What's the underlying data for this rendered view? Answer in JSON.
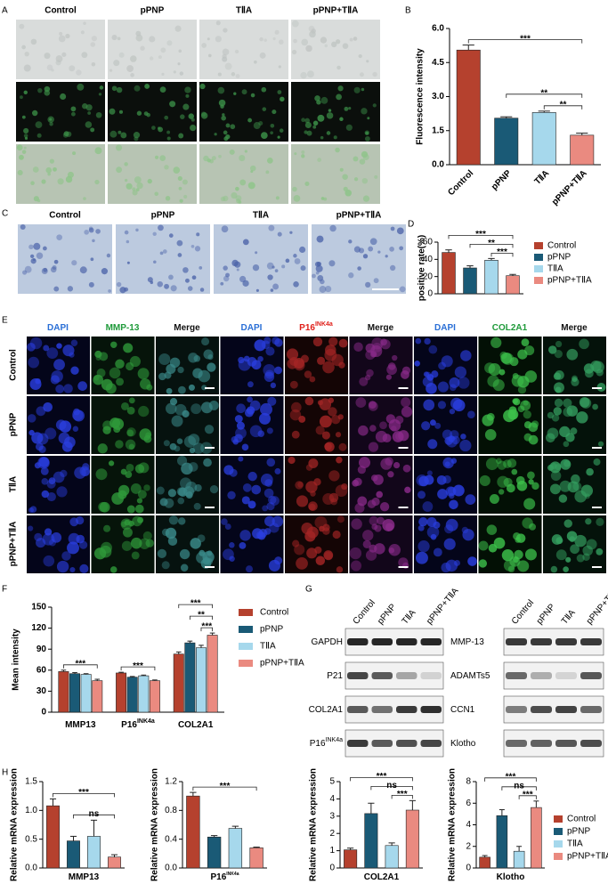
{
  "panel_labels": [
    "A",
    "B",
    "C",
    "D",
    "E",
    "F",
    "G",
    "H"
  ],
  "panel_a": {
    "columns": [
      "Control",
      "pPNP",
      "TⅡA",
      "pPNP+TⅡA"
    ]
  },
  "panel_c": {
    "columns": [
      "Control",
      "pPNP",
      "TⅡA",
      "pPNP+TⅡA"
    ]
  },
  "panel_e": {
    "columns": [
      "DAPI",
      "MMP-13",
      "Merge",
      "DAPI",
      "P16",
      "Merge",
      "DAPI",
      "COL2A1",
      "Merge"
    ],
    "column_superscripts": [
      null,
      null,
      null,
      null,
      "INK4a",
      null,
      null,
      null,
      null
    ],
    "column_colors": [
      "#2a6fd6",
      "#1f9a3a",
      "#111111",
      "#2a6fd6",
      "#e0201a",
      "#111111",
      "#2a6fd6",
      "#1f9a3a",
      "#111111"
    ],
    "rows": [
      "Control",
      "pPNP",
      "TⅡA",
      "pPNP+TⅡA"
    ]
  },
  "panel_g": {
    "lanes": [
      "Control",
      "pPNP",
      "TⅡA",
      "pPNP+TⅡA"
    ],
    "blots": [
      {
        "proteins": [
          "GAPDH",
          "P21",
          "COL2A1",
          "P16"
        ],
        "superscripts": [
          null,
          null,
          null,
          "INK4a"
        ]
      },
      {
        "proteins": [
          "MMP-13",
          "ADAMTs5",
          "CCN1",
          "Klotho"
        ],
        "superscripts": [
          null,
          null,
          null,
          null
        ]
      }
    ]
  },
  "chart_data": [
    {
      "type": "bar",
      "ylabel": "Fluorescence intensity",
      "categories": [
        "Control",
        "pPNP",
        "TⅡA",
        "pPNP+TⅡA"
      ],
      "values": [
        5.05,
        2.05,
        2.3,
        1.3
      ],
      "errors": [
        0.22,
        0.06,
        0.06,
        0.09
      ],
      "colors": [
        "#b5412e",
        "#1a5a76",
        "#a6d8ec",
        "#ea8a80"
      ],
      "ylim": [
        0,
        6
      ],
      "yticks": [
        {
          "value": 0,
          "label": "0.0"
        },
        1.5,
        {
          "value": 3,
          "label": "3.0"
        },
        4.5,
        {
          "value": 6,
          "label": "6.0"
        }
      ],
      "brackets": [
        {
          "from": 2,
          "to": 3,
          "label": "**"
        },
        {
          "from": 1,
          "to": 3,
          "label": "**"
        },
        {
          "from": 0,
          "to": 3,
          "label": "***"
        }
      ]
    },
    {
      "type": "bar",
      "ylabel": "positive rate(%)",
      "categories": [
        "Control",
        "pPNP",
        "TⅡA",
        "pPNP+TⅡA"
      ],
      "values": [
        48,
        30,
        39,
        21
      ],
      "errors": [
        3,
        2.5,
        2,
        1.5
      ],
      "colors": [
        "#b5412e",
        "#1a5a76",
        "#a6d8ec",
        "#ea8a80"
      ],
      "ylim": [
        0,
        60
      ],
      "yticks": [
        0,
        20,
        40,
        60
      ],
      "legend": "right",
      "brackets": [
        {
          "from": 2,
          "to": 3,
          "label": "***"
        },
        {
          "from": 1,
          "to": 3,
          "label": "**"
        },
        {
          "from": 0,
          "to": 3,
          "label": "***"
        }
      ]
    },
    {
      "type": "bar",
      "ylabel": "Mean intensity",
      "categories": [
        "MMP13",
        "P16",
        "COL2A1"
      ],
      "category_superscripts": [
        null,
        "INK4a",
        null
      ],
      "series": [
        {
          "name": "Control",
          "color": "#b5412e",
          "values": [
            58,
            56,
            83
          ],
          "errors": [
            2,
            1,
            3
          ]
        },
        {
          "name": "pPNP",
          "color": "#1a5a76",
          "values": [
            55,
            50,
            99
          ],
          "errors": [
            1.5,
            1,
            2.5
          ]
        },
        {
          "name": "TⅡA",
          "color": "#a6d8ec",
          "values": [
            54,
            52,
            92
          ],
          "errors": [
            1,
            1,
            3.5
          ]
        },
        {
          "name": "pPNP+TⅡA",
          "color": "#ea8a80",
          "values": [
            45,
            45,
            110
          ],
          "errors": [
            2,
            1,
            3
          ]
        }
      ],
      "ylim": [
        0,
        150
      ],
      "yticks": [
        0,
        30,
        60,
        90,
        120,
        150
      ],
      "legend": "right",
      "brackets": [
        {
          "group": 0,
          "from": 0,
          "to": 3,
          "label": "***"
        },
        {
          "group": 1,
          "from": 0,
          "to": 3,
          "label": "***"
        },
        {
          "group": 2,
          "from": 2,
          "to": 3,
          "label": "***"
        },
        {
          "group": 2,
          "from": 1,
          "to": 3,
          "label": "**"
        },
        {
          "group": 2,
          "from": 0,
          "to": 3,
          "label": "***"
        }
      ]
    },
    {
      "type": "bar",
      "ylabel": "Relative mRNA expression",
      "xlabel": "MMP13",
      "values": [
        1.08,
        0.47,
        0.55,
        0.19
      ],
      "errors": [
        0.12,
        0.08,
        0.28,
        0.04
      ],
      "colors": [
        "#b5412e",
        "#1a5a76",
        "#a6d8ec",
        "#ea8a80"
      ],
      "ylim": [
        0,
        1.5
      ],
      "yticks": [
        {
          "value": 0,
          "label": "0.0"
        },
        0.5,
        {
          "value": 1,
          "label": "1.0"
        },
        1.5
      ],
      "brackets": [
        {
          "from": 1,
          "to": 3,
          "label": "ns"
        },
        {
          "from": 0,
          "to": 3,
          "label": "***"
        }
      ]
    },
    {
      "type": "bar",
      "ylabel": "Relative mRNA expression",
      "xlabel": "P16",
      "xlabel_superscript": "INK4a",
      "values": [
        1.0,
        0.43,
        0.55,
        0.28
      ],
      "errors": [
        0.05,
        0.02,
        0.03,
        0.01
      ],
      "colors": [
        "#b5412e",
        "#1a5a76",
        "#a6d8ec",
        "#ea8a80"
      ],
      "ylim": [
        0,
        1.2
      ],
      "yticks": [
        {
          "value": 0,
          "label": "0.0"
        },
        0.4,
        0.8,
        1.2
      ],
      "brackets": [
        {
          "from": 0,
          "to": 3,
          "label": "***"
        }
      ]
    },
    {
      "type": "bar",
      "ylabel": "Relative mRNA expression",
      "xlabel": "COL2A1",
      "values": [
        1.05,
        3.15,
        1.3,
        3.35
      ],
      "errors": [
        0.1,
        0.6,
        0.15,
        0.55
      ],
      "colors": [
        "#b5412e",
        "#1a5a76",
        "#a6d8ec",
        "#ea8a80"
      ],
      "ylim": [
        0,
        5
      ],
      "yticks": [
        0,
        1,
        2,
        3,
        4,
        5
      ],
      "brackets": [
        {
          "from": 2,
          "to": 3,
          "label": "***"
        },
        {
          "from": 1,
          "to": 3,
          "label": "ns"
        },
        {
          "from": 0,
          "to": 3,
          "label": "***"
        }
      ]
    },
    {
      "type": "bar",
      "ylabel": "Relative mRNA expression",
      "xlabel": "Klotho",
      "categories": [
        "Control",
        "pPNP",
        "TⅡA",
        "pPNP+TⅡA"
      ],
      "values": [
        1.0,
        4.85,
        1.55,
        5.6
      ],
      "errors": [
        0.15,
        0.55,
        0.45,
        0.6
      ],
      "colors": [
        "#b5412e",
        "#1a5a76",
        "#a6d8ec",
        "#ea8a80"
      ],
      "ylim": [
        0,
        8
      ],
      "yticks": [
        0,
        2,
        4,
        6,
        8
      ],
      "legend": "right",
      "brackets": [
        {
          "from": 2,
          "to": 3,
          "label": "***"
        },
        {
          "from": 1,
          "to": 3,
          "label": "ns"
        },
        {
          "from": 0,
          "to": 3,
          "label": "***"
        }
      ]
    }
  ]
}
